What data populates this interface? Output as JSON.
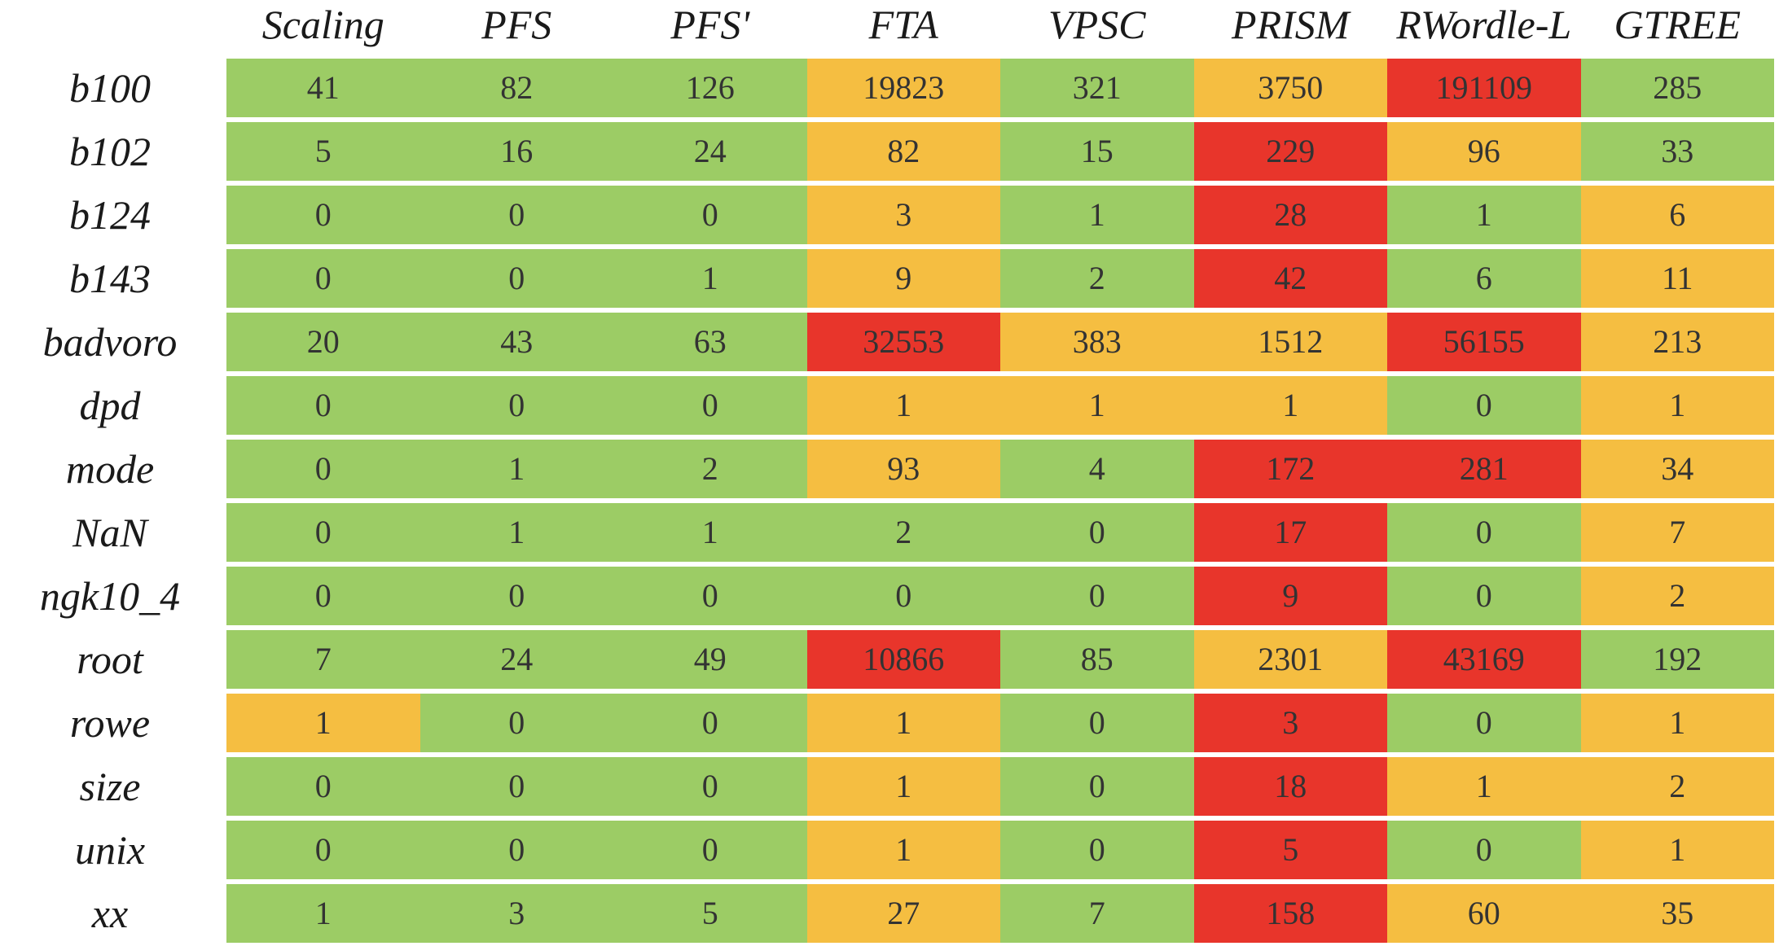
{
  "chart_data": {
    "type": "heatmap",
    "columns": [
      "Scaling",
      "PFS",
      "PFS'",
      "FTA",
      "VPSC",
      "PRISM",
      "RWordle-L",
      "GTREE"
    ],
    "rows": [
      "b100",
      "b102",
      "b124",
      "b143",
      "badvoro",
      "dpd",
      "mode",
      "NaN",
      "ngk10_4",
      "root",
      "rowe",
      "size",
      "unix",
      "xx"
    ],
    "values": [
      [
        41,
        82,
        126,
        19823,
        321,
        3750,
        191109,
        285
      ],
      [
        5,
        16,
        24,
        82,
        15,
        229,
        96,
        33
      ],
      [
        0,
        0,
        0,
        3,
        1,
        28,
        1,
        6
      ],
      [
        0,
        0,
        1,
        9,
        2,
        42,
        6,
        11
      ],
      [
        20,
        43,
        63,
        32553,
        383,
        1512,
        56155,
        213
      ],
      [
        0,
        0,
        0,
        1,
        1,
        1,
        0,
        1
      ],
      [
        0,
        1,
        2,
        93,
        4,
        172,
        281,
        34
      ],
      [
        0,
        1,
        1,
        2,
        0,
        17,
        0,
        7
      ],
      [
        0,
        0,
        0,
        0,
        0,
        9,
        0,
        2
      ],
      [
        7,
        24,
        49,
        10866,
        85,
        2301,
        43169,
        192
      ],
      [
        1,
        0,
        0,
        1,
        0,
        3,
        0,
        1
      ],
      [
        0,
        0,
        0,
        1,
        0,
        18,
        1,
        2
      ],
      [
        0,
        0,
        0,
        1,
        0,
        5,
        0,
        1
      ],
      [
        1,
        3,
        5,
        27,
        7,
        158,
        60,
        35
      ]
    ],
    "levels": [
      [
        "g",
        "g",
        "g",
        "o",
        "g",
        "o",
        "r",
        "g"
      ],
      [
        "g",
        "g",
        "g",
        "o",
        "g",
        "r",
        "o",
        "g"
      ],
      [
        "g",
        "g",
        "g",
        "o",
        "g",
        "r",
        "g",
        "o"
      ],
      [
        "g",
        "g",
        "g",
        "o",
        "g",
        "r",
        "g",
        "o"
      ],
      [
        "g",
        "g",
        "g",
        "r",
        "o",
        "o",
        "r",
        "o"
      ],
      [
        "g",
        "g",
        "g",
        "o",
        "o",
        "o",
        "g",
        "o"
      ],
      [
        "g",
        "g",
        "g",
        "o",
        "g",
        "r",
        "r",
        "o"
      ],
      [
        "g",
        "g",
        "g",
        "g",
        "g",
        "r",
        "g",
        "o"
      ],
      [
        "g",
        "g",
        "g",
        "g",
        "g",
        "r",
        "g",
        "o"
      ],
      [
        "g",
        "g",
        "g",
        "r",
        "g",
        "o",
        "r",
        "g"
      ],
      [
        "o",
        "g",
        "g",
        "o",
        "g",
        "r",
        "g",
        "o"
      ],
      [
        "g",
        "g",
        "g",
        "o",
        "g",
        "r",
        "o",
        "o"
      ],
      [
        "g",
        "g",
        "g",
        "o",
        "g",
        "r",
        "g",
        "o"
      ],
      [
        "g",
        "g",
        "g",
        "o",
        "g",
        "r",
        "o",
        "o"
      ]
    ],
    "colors": {
      "g": "#9ccc65",
      "o": "#f5be41",
      "r": "#e8352b"
    }
  }
}
